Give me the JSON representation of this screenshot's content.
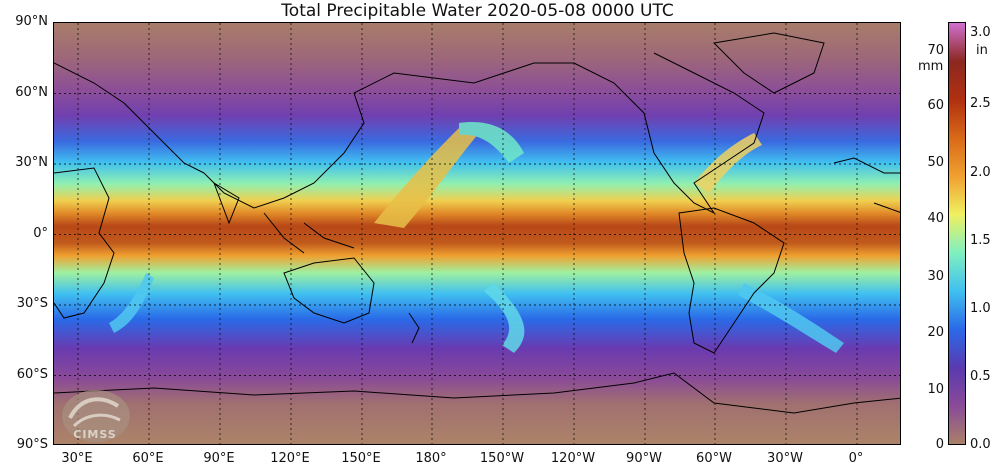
{
  "title": "Total Precipitable Water  2020-05-08 0000 UTC",
  "lat_labels": [
    "90°N",
    "60°N",
    "30°N",
    "0°",
    "30°S",
    "60°S",
    "90°S"
  ],
  "lon_labels": [
    "30°E",
    "60°E",
    "90°E",
    "120°E",
    "150°E",
    "180°",
    "150°W",
    "120°W",
    "90°W",
    "60°W",
    "30°W",
    "0°"
  ],
  "colorbar": {
    "mm_unit": "mm",
    "in_unit": "in",
    "mm_ticks": [
      "70",
      "60",
      "50",
      "40",
      "30",
      "20",
      "10",
      "0"
    ],
    "in_ticks": [
      "3.0",
      "2.5",
      "2.0",
      "1.5",
      "1.0",
      "0.5",
      "0.0"
    ],
    "colors": [
      "#a98068",
      "#8a4a98",
      "#5a3ab0",
      "#2a6ae8",
      "#40c0f0",
      "#80f0c0",
      "#f0f060",
      "#f0a030",
      "#d86818",
      "#b03010",
      "#8c2820",
      "#d070d0"
    ]
  },
  "logo": {
    "text": "CIMSS"
  }
}
